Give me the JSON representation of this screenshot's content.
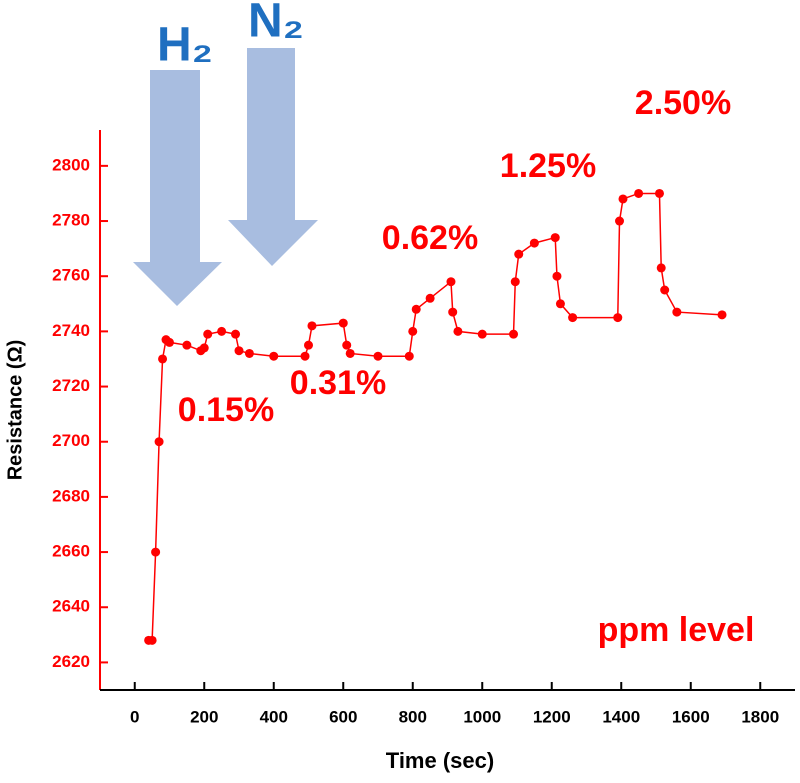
{
  "chart_data": {
    "type": "line",
    "x_label": "Time (sec)",
    "y_label": "Resistance (Ω)",
    "color": "#ff0000",
    "x": [
      40,
      50,
      60,
      70,
      80,
      90,
      100,
      150,
      190,
      200,
      210,
      250,
      290,
      300,
      330,
      400,
      490,
      500,
      510,
      600,
      610,
      620,
      700,
      790,
      800,
      810,
      850,
      910,
      915,
      930,
      1000,
      1090,
      1095,
      1105,
      1150,
      1210,
      1215,
      1225,
      1260,
      1390,
      1395,
      1405,
      1450,
      1510,
      1515,
      1525,
      1560,
      1690
    ],
    "values": [
      2628,
      2628,
      2660,
      2700,
      2730,
      2737,
      2736,
      2735,
      2733,
      2734,
      2739,
      2740,
      2739,
      2733,
      2732,
      2731,
      2731,
      2735,
      2742,
      2743,
      2735,
      2732,
      2731,
      2731,
      2740,
      2748,
      2752,
      2758,
      2747,
      2740,
      2739,
      2739,
      2758,
      2768,
      2772,
      2774,
      2760,
      2750,
      2745,
      2745,
      2780,
      2788,
      2790,
      2790,
      2763,
      2755,
      2747,
      2746
    ],
    "xlim": [
      -100,
      1900
    ],
    "xticks": [
      0,
      200,
      400,
      600,
      800,
      1000,
      1200,
      1400,
      1600,
      1800
    ],
    "ylim": [
      2610,
      2813
    ],
    "yticks": [
      2620,
      2640,
      2660,
      2680,
      2700,
      2720,
      2740,
      2760,
      2780,
      2800
    ],
    "annotations": [
      "H₂",
      "N₂",
      "0.15%",
      "0.31%",
      "0.62%",
      "1.25%",
      "2.50%",
      "ppm level"
    ]
  }
}
